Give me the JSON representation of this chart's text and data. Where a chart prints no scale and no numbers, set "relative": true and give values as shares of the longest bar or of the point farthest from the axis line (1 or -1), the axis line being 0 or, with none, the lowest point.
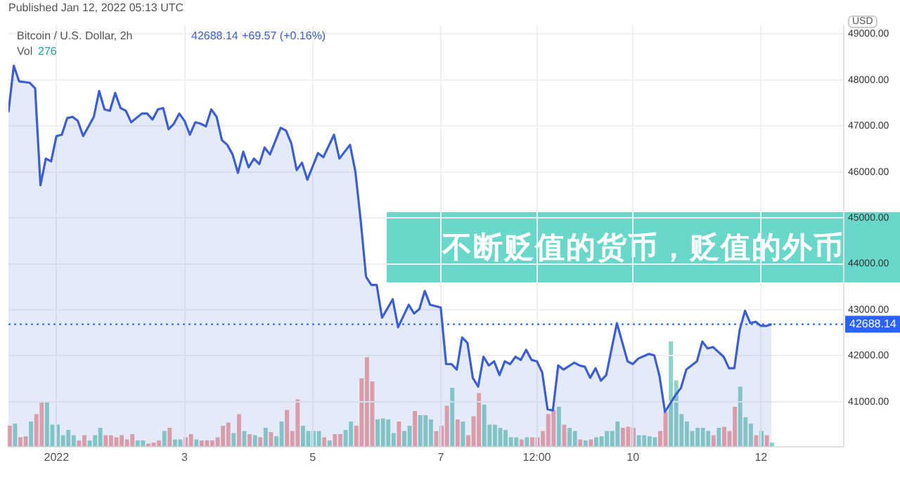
{
  "chart_data": [
    {
      "type": "area",
      "title": "不断贬值的货币，贬值的外币",
      "annotations": [
        "Published Jan 12, 2022 05:13 UTC",
        "Bitcoin / U.S. Dollar, 2h",
        "42688.14",
        "+69.57 (+0.16%)",
        "Vol",
        "276",
        "USD"
      ],
      "x": [
        "2021-12-31T06:00",
        "2021-12-31T08:00",
        "2021-12-31T10:00",
        "2021-12-31T14:00",
        "2021-12-31T16:00",
        "2021-12-31T18:00",
        "2021-12-31T20:00",
        "2021-12-31T22:00",
        "2022-01-01T00:00",
        "2022-01-01T02:00",
        "2022-01-01T04:00",
        "2022-01-01T06:00",
        "2022-01-01T08:00",
        "2022-01-01T10:00",
        "2022-01-01T14:00",
        "2022-01-01T16:00",
        "2022-01-01T18:00",
        "2022-01-01T20:00",
        "2022-01-01T22:00",
        "2022-01-02T00:00",
        "2022-01-02T02:00",
        "2022-01-02T04:00",
        "2022-01-02T08:00",
        "2022-01-02T10:00",
        "2022-01-02T12:00",
        "2022-01-02T14:00",
        "2022-01-02T16:00",
        "2022-01-02T18:00",
        "2022-01-02T20:00",
        "2022-01-02T22:00",
        "2022-01-03T00:00",
        "2022-01-03T02:00",
        "2022-01-03T04:00",
        "2022-01-03T06:00",
        "2022-01-03T08:00",
        "2022-01-03T10:00",
        "2022-01-03T12:00",
        "2022-01-03T14:00",
        "2022-01-03T16:00",
        "2022-01-03T18:00",
        "2022-01-03T20:00",
        "2022-01-03T22:00",
        "2022-01-04T00:00",
        "2022-01-04T02:00",
        "2022-01-04T04:00",
        "2022-01-04T06:00",
        "2022-01-04T08:00",
        "2022-01-04T12:00",
        "2022-01-04T14:00",
        "2022-01-04T16:00",
        "2022-01-04T18:00",
        "2022-01-04T20:00",
        "2022-01-04T22:00",
        "2022-01-05T02:00",
        "2022-01-05T04:00",
        "2022-01-05T08:00",
        "2022-01-05T10:00",
        "2022-01-05T14:00",
        "2022-01-05T16:00",
        "2022-01-05T18:00",
        "2022-01-05T20:00",
        "2022-01-05T22:00",
        "2022-01-06T00:00",
        "2022-01-06T02:00",
        "2022-01-06T06:00",
        "2022-01-06T08:00",
        "2022-01-06T12:00",
        "2022-01-06T14:00",
        "2022-01-06T16:00",
        "2022-01-06T18:00",
        "2022-01-06T20:00",
        "2022-01-07T00:00",
        "2022-01-07T02:00",
        "2022-01-07T04:00",
        "2022-01-07T06:00",
        "2022-01-07T08:00",
        "2022-01-07T10:00",
        "2022-01-07T12:00",
        "2022-01-07T14:00",
        "2022-01-07T16:00",
        "2022-01-07T18:00",
        "2022-01-07T20:00",
        "2022-01-07T22:00",
        "2022-01-08T00:00",
        "2022-01-08T02:00",
        "2022-01-08T04:00",
        "2022-01-08T06:00",
        "2022-01-08T08:00",
        "2022-01-08T10:00",
        "2022-01-08T12:00",
        "2022-01-08T14:00",
        "2022-01-08T16:00",
        "2022-01-08T18:00",
        "2022-01-08T20:00",
        "2022-01-08T22:00",
        "2022-01-09T02:00",
        "2022-01-09T04:00",
        "2022-01-09T06:00",
        "2022-01-09T08:00",
        "2022-01-09T10:00",
        "2022-01-09T12:00",
        "2022-01-09T14:00",
        "2022-01-09T18:00",
        "2022-01-09T22:00",
        "2022-01-10T00:00",
        "2022-01-10T02:00",
        "2022-01-10T06:00",
        "2022-01-10T08:00",
        "2022-01-10T10:00",
        "2022-01-10T12:00",
        "2022-01-10T16:00",
        "2022-01-10T18:00",
        "2022-01-10T20:00",
        "2022-01-11T00:00",
        "2022-01-11T02:00",
        "2022-01-11T04:00",
        "2022-01-11T06:00",
        "2022-01-11T10:00",
        "2022-01-11T12:00",
        "2022-01-11T14:00",
        "2022-01-11T16:00",
        "2022-01-11T18:00",
        "2022-01-11T20:00",
        "2022-01-11T22:00",
        "2022-01-12T00:00",
        "2022-01-12T02:00",
        "2022-01-12T04:00"
      ],
      "series": [
        {
          "color": "#3b5fd0",
          "values": [
            47300,
            48310,
            47970,
            47940,
            47820,
            45710,
            46290,
            46230,
            46780,
            46810,
            47170,
            47200,
            47110,
            46780,
            47200,
            47760,
            47360,
            47330,
            47720,
            47390,
            47330,
            47080,
            47270,
            47270,
            47140,
            47360,
            47390,
            46930,
            47050,
            47270,
            47110,
            46810,
            47080,
            47050,
            46990,
            47360,
            47200,
            46690,
            46590,
            46380,
            45980,
            46440,
            46100,
            46290,
            46170,
            46530,
            46380,
            46960,
            46900,
            46620,
            46040,
            46200,
            45830,
            46410,
            46320,
            46810,
            46290,
            46590,
            46010,
            44940,
            43720,
            43540,
            43540,
            42830,
            43230,
            42620,
            43110,
            42920,
            43020,
            43410,
            43110,
            43050,
            41820,
            41820,
            41700,
            42400,
            42280,
            41520,
            41330,
            41980,
            41790,
            41880,
            41580,
            41880,
            41820,
            41980,
            41910,
            42130,
            41910,
            41880,
            41640,
            40840,
            40810,
            41790,
            41700,
            41850,
            41790,
            41760,
            41520,
            41730,
            41460,
            41580,
            42710,
            41880,
            41820,
            41940,
            42040,
            42010,
            41550,
            40780,
            41150,
            41300,
            41700,
            41880,
            42310,
            42160,
            42190,
            41980,
            41730,
            41730,
            42560,
            42980,
            42710,
            42740,
            42650,
            42650,
            42688.14
          ]
        }
      ],
      "xlim": [
        "2021-12-31T06:00",
        "2022-01-13T07:00"
      ],
      "xticks": [
        {
          "value": "2022-01-01",
          "label": "2022"
        },
        {
          "value": "2022-01-03",
          "label": "3"
        },
        {
          "value": "2022-01-05",
          "label": "5"
        },
        {
          "value": "2022-01-07",
          "label": "7"
        },
        {
          "value": "2022-01-08T12:00",
          "label": "12:00"
        },
        {
          "value": "2022-01-10",
          "label": "10"
        },
        {
          "value": "2022-01-12",
          "label": "12"
        }
      ],
      "ylim": [
        40020,
        49190
      ],
      "yticks": [
        {
          "value": 41000,
          "label": "41000.00"
        },
        {
          "value": 42000,
          "label": "42000.00"
        },
        {
          "value": 43000,
          "label": "43000.00"
        },
        {
          "value": 44000,
          "label": "44000.00"
        },
        {
          "value": 45000,
          "label": "45000.00"
        },
        {
          "value": 46000,
          "label": "46000.00"
        },
        {
          "value": 47000,
          "label": "47000.00"
        },
        {
          "value": 48000,
          "label": "48000.00"
        },
        {
          "value": 49000,
          "label": "49000.00"
        }
      ],
      "ref_lines": [
        {
          "axis": "y",
          "value": 42688.14,
          "label": "42688.14",
          "color": "#2962ff",
          "line_style": "dotted"
        }
      ],
      "grid": true,
      "marker": "none",
      "line_style": "solid"
    },
    {
      "type": "bar",
      "relative": true,
      "categories": [
        null,
        null,
        null,
        null,
        null,
        null,
        null,
        null,
        null,
        null,
        null,
        null,
        null,
        null,
        null,
        null,
        null,
        null,
        null,
        null,
        null,
        null,
        null,
        null,
        null,
        null,
        null,
        null,
        null,
        null,
        null,
        null,
        null,
        null,
        null,
        null,
        null,
        null,
        null,
        null,
        null,
        null,
        null,
        null,
        null,
        null,
        null,
        null,
        null,
        null,
        null,
        null,
        null,
        null,
        null,
        null,
        null,
        null,
        null,
        null,
        null,
        null,
        null,
        null,
        null,
        null,
        null,
        null,
        null,
        null,
        null,
        null,
        null,
        null,
        null,
        null,
        null,
        null,
        null,
        null,
        null,
        null,
        null,
        null,
        null,
        null,
        null,
        null,
        null,
        null,
        null,
        null,
        null,
        null,
        null,
        null,
        null,
        null,
        null,
        null,
        null,
        null,
        null,
        null,
        null,
        null,
        null,
        null,
        null,
        null,
        null,
        null,
        null,
        null,
        null,
        null,
        null,
        null,
        null,
        null,
        null,
        null,
        null,
        null,
        null,
        null,
        null,
        null,
        null,
        null,
        null,
        null,
        null,
        null,
        null,
        null,
        null,
        null,
        null,
        null,
        null,
        null,
        null,
        null
      ],
      "values": [
        0.2,
        0.22,
        0.09,
        0.1,
        0.24,
        0.31,
        0.42,
        0.42,
        0.21,
        0.21,
        0.11,
        0.16,
        0.11,
        0.06,
        0.11,
        0.06,
        0.11,
        0.18,
        0.11,
        0.11,
        0.09,
        0.11,
        0.07,
        0.12,
        0.06,
        0.06,
        0.03,
        0.04,
        0.06,
        0.15,
        0.18,
        0.07,
        0.07,
        0.09,
        0.12,
        0.07,
        0.06,
        0.06,
        0.06,
        0.09,
        0.2,
        0.23,
        0.13,
        0.31,
        0.15,
        0.12,
        0.11,
        0.09,
        0.18,
        0.14,
        0.1,
        0.24,
        0.35,
        0.15,
        0.45,
        0.2,
        0.15,
        0.15,
        0.15,
        0.09,
        0.06,
        0.12,
        0.12,
        0.16,
        0.24,
        0.2,
        0.65,
        0.85,
        0.62,
        0.26,
        0.27,
        0.26,
        0.13,
        0.24,
        0.15,
        0.2,
        0.34,
        0.3,
        0.3,
        0.26,
        0.15,
        0.2,
        0.39,
        0.56,
        0.26,
        0.24,
        0.11,
        0.29,
        0.51,
        0.4,
        0.21,
        0.21,
        0.18,
        0.16,
        0.09,
        0.09,
        0.07,
        0.09,
        0.09,
        0.09,
        0.15,
        0.31,
        0.35,
        0.38,
        0.21,
        0.18,
        0.15,
        0.07,
        0.06,
        0.07,
        0.09,
        0.1,
        0.15,
        0.15,
        0.24,
        0.18,
        0.19,
        0.18,
        0.11,
        0.11,
        0.1,
        0.09,
        0.15,
        0.33,
        1,
        0.63,
        0.31,
        0.24,
        0.15,
        0.18,
        0.18,
        0.15,
        0.11,
        0.18,
        0.19,
        0.15,
        0.38,
        0.57,
        0.28,
        0.22,
        0.11,
        0.15,
        0.11,
        0.04
      ],
      "colors": [
        "#f4a6a3",
        "#8dd3c7",
        "#f4a6a3",
        "#f4a6a3",
        "#8dd3c7",
        "#f4a6a3",
        "#f4a6a3",
        "#8dd3c7",
        "#8dd3c7",
        "#8dd3c7",
        "#8dd3c7",
        "#8dd3c7",
        "#8dd3c7",
        "#f4a6a3",
        "#f4a6a3",
        "#8dd3c7",
        "#8dd3c7",
        "#8dd3c7",
        "#f4a6a3",
        "#f4a6a3",
        "#f4a6a3",
        "#f4a6a3",
        "#f4a6a3",
        "#f4a6a3",
        "#8dd3c7",
        "#8dd3c7",
        "#f4a6a3",
        "#f4a6a3",
        "#f4a6a3",
        "#8dd3c7",
        "#f4a6a3",
        "#8dd3c7",
        "#8dd3c7",
        "#f4a6a3",
        "#f4a6a3",
        "#8dd3c7",
        "#f4a6a3",
        "#f4a6a3",
        "#f4a6a3",
        "#f4a6a3",
        "#f4a6a3",
        "#f4a6a3",
        "#8dd3c7",
        "#f4a6a3",
        "#8dd3c7",
        "#f4a6a3",
        "#8dd3c7",
        "#f4a6a3",
        "#8dd3c7",
        "#f4a6a3",
        "#8dd3c7",
        "#8dd3c7",
        "#f4a6a3",
        "#f4a6a3",
        "#f4a6a3",
        "#8dd3c7",
        "#8dd3c7",
        "#8dd3c7",
        "#8dd3c7",
        "#f4a6a3",
        "#8dd3c7",
        "#f4a6a3",
        "#f4a6a3",
        "#8dd3c7",
        "#8dd3c7",
        "#f4a6a3",
        "#f4a6a3",
        "#f4a6a3",
        "#f4a6a3",
        "#8dd3c7",
        "#8dd3c7",
        "#8dd3c7",
        "#8dd3c7",
        "#f4a6a3",
        "#8dd3c7",
        "#8dd3c7",
        "#f4a6a3",
        "#8dd3c7",
        "#8dd3c7",
        "#8dd3c7",
        "#f4a6a3",
        "#f4a6a3",
        "#f4a6a3",
        "#8dd3c7",
        "#f4a6a3",
        "#8dd3c7",
        "#f4a6a3",
        "#f4a6a3",
        "#f4a6a3",
        "#8dd3c7",
        "#8dd3c7",
        "#8dd3c7",
        "#8dd3c7",
        "#8dd3c7",
        "#8dd3c7",
        "#8dd3c7",
        "#f4a6a3",
        "#8dd3c7",
        "#f4a6a3",
        "#f4a6a3",
        "#f4a6a3",
        "#f4a6a3",
        "#f4a6a3",
        "#8dd3c7",
        "#f4a6a3",
        "#8dd3c7",
        "#8dd3c7",
        "#f4a6a3",
        "#8dd3c7",
        "#f4a6a3",
        "#8dd3c7",
        "#8dd3c7",
        "#8dd3c7",
        "#8dd3c7",
        "#8dd3c7",
        "#f4a6a3",
        "#f4a6a3",
        "#f4a6a3",
        "#8dd3c7",
        "#8dd3c7",
        "#8dd3c7",
        "#8dd3c7",
        "#f4a6a3",
        "#f4a6a3",
        "#8dd3c7",
        "#8dd3c7",
        "#8dd3c7",
        "#8dd3c7",
        "#8dd3c7",
        "#8dd3c7",
        "#8dd3c7",
        "#8dd3c7",
        "#f4a6a3",
        "#8dd3c7",
        "#f4a6a3",
        "#f4a6a3",
        "#f4a6a3",
        "#8dd3c7",
        "#8dd3c7",
        "#8dd3c7",
        "#f4a6a3",
        "#8dd3c7",
        "#f4a6a3",
        "#8dd3c7"
      ]
    }
  ]
}
